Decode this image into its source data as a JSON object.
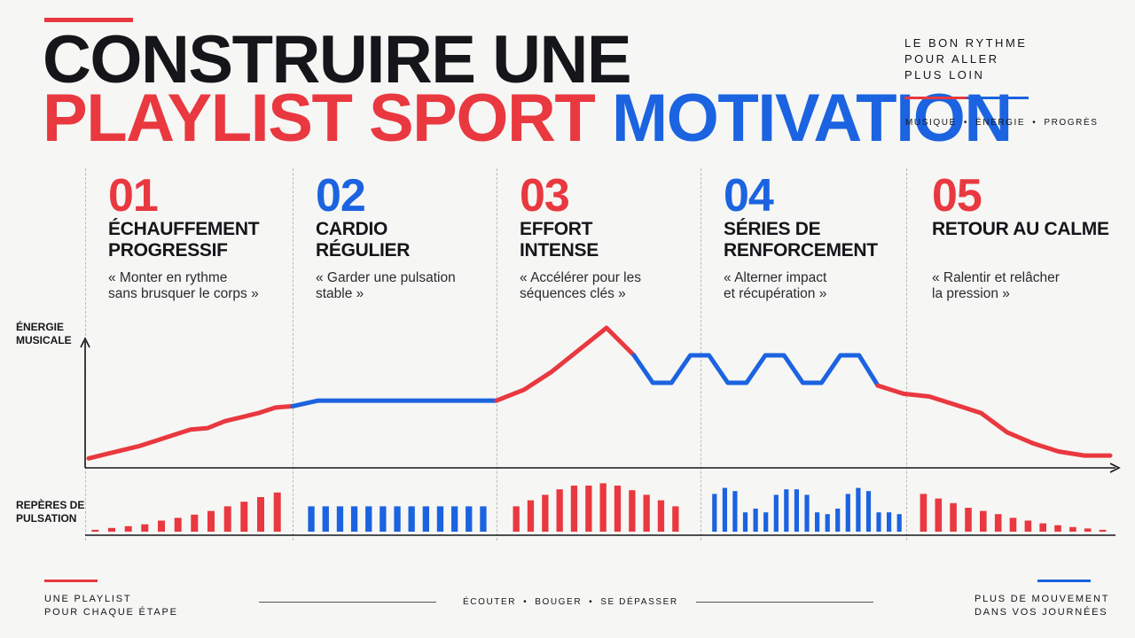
{
  "header": {
    "title_line1": "CONSTRUIRE UNE",
    "title_line2_a": "PLAYLIST SPORT",
    "title_line2_b": "MOTIVATION",
    "tagline": [
      "LE BON RYTHME",
      "POUR ALLER",
      "PLUS LOIN"
    ],
    "keywords": [
      "MUSIQUE",
      "ÉNERGIE",
      "PROGRÈS"
    ],
    "keyword_sep": "•"
  },
  "stages": [
    {
      "num": "01",
      "name": [
        "ÉCHAUFFEMENT",
        "PROGRESSIF"
      ],
      "quote": [
        "« Monter en rythme",
        "sans brusquer le corps »"
      ],
      "color": "#e9383f"
    },
    {
      "num": "02",
      "name": [
        "CARDIO",
        "RÉGULIER"
      ],
      "quote": [
        "« Garder une pulsation",
        "stable »"
      ],
      "color": "#1b63e0"
    },
    {
      "num": "03",
      "name": [
        "EFFORT",
        "INTENSE"
      ],
      "quote": [
        "« Accélérer pour les",
        "séquences clés »"
      ],
      "color": "#e9383f"
    },
    {
      "num": "04",
      "name": [
        "SÉRIES DE",
        "RENFORCEMENT"
      ],
      "quote": [
        "« Alterner impact",
        "et récupération »"
      ],
      "color": "#1b63e0"
    },
    {
      "num": "05",
      "name": [
        "RETOUR AU CALME"
      ],
      "quote": [
        "« Ralentir et relâcher",
        "la pression »"
      ],
      "color": "#e9383f"
    }
  ],
  "axes": {
    "energy_label": [
      "ÉNERGIE",
      "MUSICALE"
    ],
    "pulse_label": [
      "REPÈRES DE",
      "PULSATION"
    ]
  },
  "chart_data": {
    "type": "line",
    "series": [
      {
        "segments": [
          {
            "stage": "01",
            "color": "#e9383f",
            "values": [
              0.05,
              0.08,
              0.11,
              0.14,
              0.18,
              0.22,
              0.26,
              0.27,
              0.32,
              0.35,
              0.38,
              0.42,
              0.43
            ]
          },
          {
            "stage": "02",
            "color": "#1b63e0",
            "values": [
              0.43,
              0.47,
              0.47,
              0.47,
              0.47,
              0.47,
              0.47,
              0.47,
              0.47
            ]
          },
          {
            "stage": "03",
            "color": "#e9383f",
            "values": [
              0.47,
              0.55,
              0.68,
              0.84,
              1.0,
              0.8
            ]
          },
          {
            "stage": "04",
            "color": "#1b63e0",
            "values": [
              0.8,
              0.6,
              0.6,
              0.8,
              0.8,
              0.6,
              0.6,
              0.8,
              0.8,
              0.6,
              0.6,
              0.8,
              0.8,
              0.58
            ]
          },
          {
            "stage": "05",
            "color": "#e9383f",
            "values": [
              0.58,
              0.52,
              0.5,
              0.44,
              0.38,
              0.24,
              0.16,
              0.1,
              0.07,
              0.07
            ]
          }
        ]
      }
    ],
    "pulse_bars": [
      {
        "stage": "01",
        "color": "#e9383f",
        "values": [
          0.04,
          0.08,
          0.12,
          0.16,
          0.24,
          0.3,
          0.37,
          0.45,
          0.55,
          0.65,
          0.75,
          0.85
        ]
      },
      {
        "stage": "02",
        "color": "#1b63e0",
        "values": [
          0.55,
          0.55,
          0.55,
          0.55,
          0.55,
          0.55,
          0.55,
          0.55,
          0.55,
          0.55,
          0.55,
          0.55,
          0.55
        ]
      },
      {
        "stage": "03",
        "color": "#e9383f",
        "values": [
          0.55,
          0.68,
          0.8,
          0.92,
          1.0,
          1.0,
          1.05,
          1.0,
          0.9,
          0.8,
          0.68,
          0.55
        ]
      },
      {
        "stage": "04",
        "color": "#1b63e0",
        "values": [
          0.82,
          0.95,
          0.88,
          0.42,
          0.5,
          0.42,
          0.8,
          0.92,
          0.92,
          0.8,
          0.42,
          0.38,
          0.5,
          0.82,
          0.95,
          0.88,
          0.42,
          0.42,
          0.38
        ]
      },
      {
        "stage": "05",
        "color": "#e9383f",
        "values": [
          0.82,
          0.72,
          0.62,
          0.52,
          0.45,
          0.38,
          0.3,
          0.24,
          0.18,
          0.14,
          0.1,
          0.07,
          0.04
        ]
      }
    ]
  },
  "footer": {
    "left": [
      "UNE PLAYLIST",
      "POUR CHAQUE ÉTAPE"
    ],
    "center": [
      "ÉCOUTER",
      "BOUGER",
      "SE DÉPASSER"
    ],
    "right": [
      "PLUS DE MOUVEMENT",
      "DANS VOS JOURNÉES"
    ],
    "sep": "•"
  }
}
